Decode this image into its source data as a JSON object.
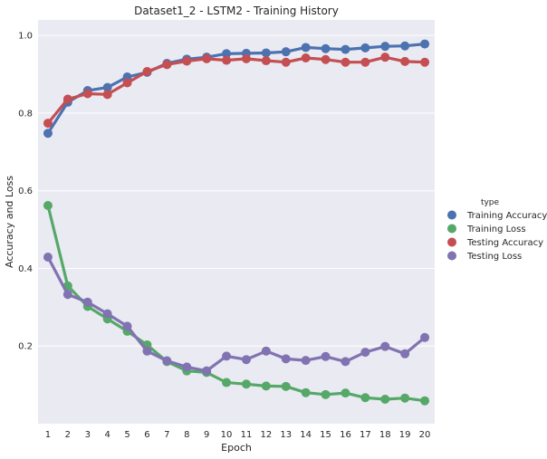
{
  "chart_data": {
    "type": "line",
    "title": "Dataset1_2 - LSTM2 - Training History",
    "xlabel": "Epoch",
    "ylabel": "Accuracy and Loss",
    "categories": [
      "1",
      "2",
      "3",
      "4",
      "5",
      "6",
      "7",
      "8",
      "9",
      "10",
      "11",
      "12",
      "13",
      "14",
      "15",
      "16",
      "17",
      "18",
      "19",
      "20"
    ],
    "yticks": [
      "0.2",
      "0.4",
      "0.6",
      "0.8",
      "1.0"
    ],
    "ylim": [
      0.0,
      1.04
    ],
    "grid": true,
    "legend": {
      "title": "type",
      "placement": "right"
    },
    "series": [
      {
        "name": "Training Accuracy",
        "color": "#4c72b0",
        "values": [
          0.748,
          0.828,
          0.858,
          0.866,
          0.893,
          0.905,
          0.928,
          0.939,
          0.944,
          0.953,
          0.954,
          0.955,
          0.958,
          0.969,
          0.966,
          0.964,
          0.968,
          0.972,
          0.973,
          0.978
        ]
      },
      {
        "name": "Training Loss",
        "color": "#55a868",
        "values": [
          0.562,
          0.355,
          0.302,
          0.27,
          0.238,
          0.203,
          0.16,
          0.136,
          0.132,
          0.106,
          0.102,
          0.097,
          0.096,
          0.08,
          0.075,
          0.079,
          0.067,
          0.063,
          0.066,
          0.059
        ]
      },
      {
        "name": "Testing Accuracy",
        "color": "#c44e52",
        "values": [
          0.774,
          0.836,
          0.85,
          0.848,
          0.878,
          0.907,
          0.925,
          0.934,
          0.94,
          0.936,
          0.94,
          0.935,
          0.931,
          0.942,
          0.938,
          0.931,
          0.931,
          0.944,
          0.933,
          0.931
        ]
      },
      {
        "name": "Testing Loss",
        "color": "#8172b2",
        "values": [
          0.429,
          0.333,
          0.313,
          0.283,
          0.251,
          0.187,
          0.162,
          0.146,
          0.136,
          0.174,
          0.165,
          0.187,
          0.167,
          0.163,
          0.173,
          0.16,
          0.184,
          0.199,
          0.18,
          0.222
        ]
      }
    ]
  }
}
